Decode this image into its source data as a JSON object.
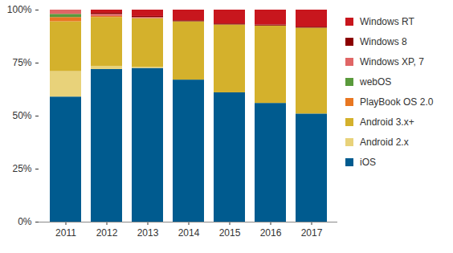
{
  "chart_data": {
    "type": "bar",
    "stacked": true,
    "grid": false,
    "legend": "right",
    "categories": [
      "2011",
      "2012",
      "2013",
      "2014",
      "2015",
      "2016",
      "2017"
    ],
    "ylim": [
      0,
      100
    ],
    "yticks": [
      {
        "value": 0,
        "label": "0%"
      },
      {
        "value": 25,
        "label": "25%"
      },
      {
        "value": 50,
        "label": "50%"
      },
      {
        "value": 75,
        "label": "75%"
      },
      {
        "value": 100,
        "label": "100%"
      }
    ],
    "series": [
      {
        "name": "iOS",
        "color": "#005b8f",
        "values": [
          59,
          72,
          72.5,
          67,
          61,
          56,
          51
        ]
      },
      {
        "name": "Android 2.x",
        "color": "#e8d27a",
        "values": [
          12,
          1.5,
          0.5,
          0,
          0,
          0,
          0
        ]
      },
      {
        "name": "Android 3.x+",
        "color": "#d4b12c",
        "values": [
          23.5,
          23,
          23,
          27.5,
          32,
          36.5,
          40.5
        ]
      },
      {
        "name": "PlayBook OS 2.0",
        "color": "#e87722",
        "values": [
          2,
          0.5,
          0,
          0,
          0,
          0,
          0
        ]
      },
      {
        "name": "webOS",
        "color": "#5a9a3c",
        "values": [
          1.5,
          0,
          0,
          0,
          0,
          0,
          0
        ]
      },
      {
        "name": "Windows XP, 7",
        "color": "#e06666",
        "values": [
          2,
          1,
          0.5,
          0,
          0,
          0,
          0
        ]
      },
      {
        "name": "Windows 8",
        "color": "#8b0000",
        "values": [
          0,
          0.5,
          0.5,
          0.5,
          0.5,
          0.5,
          0.5
        ]
      },
      {
        "name": "Windows RT",
        "color": "#c8161d",
        "values": [
          0,
          1.5,
          3,
          5,
          6.5,
          7,
          8
        ]
      }
    ]
  }
}
